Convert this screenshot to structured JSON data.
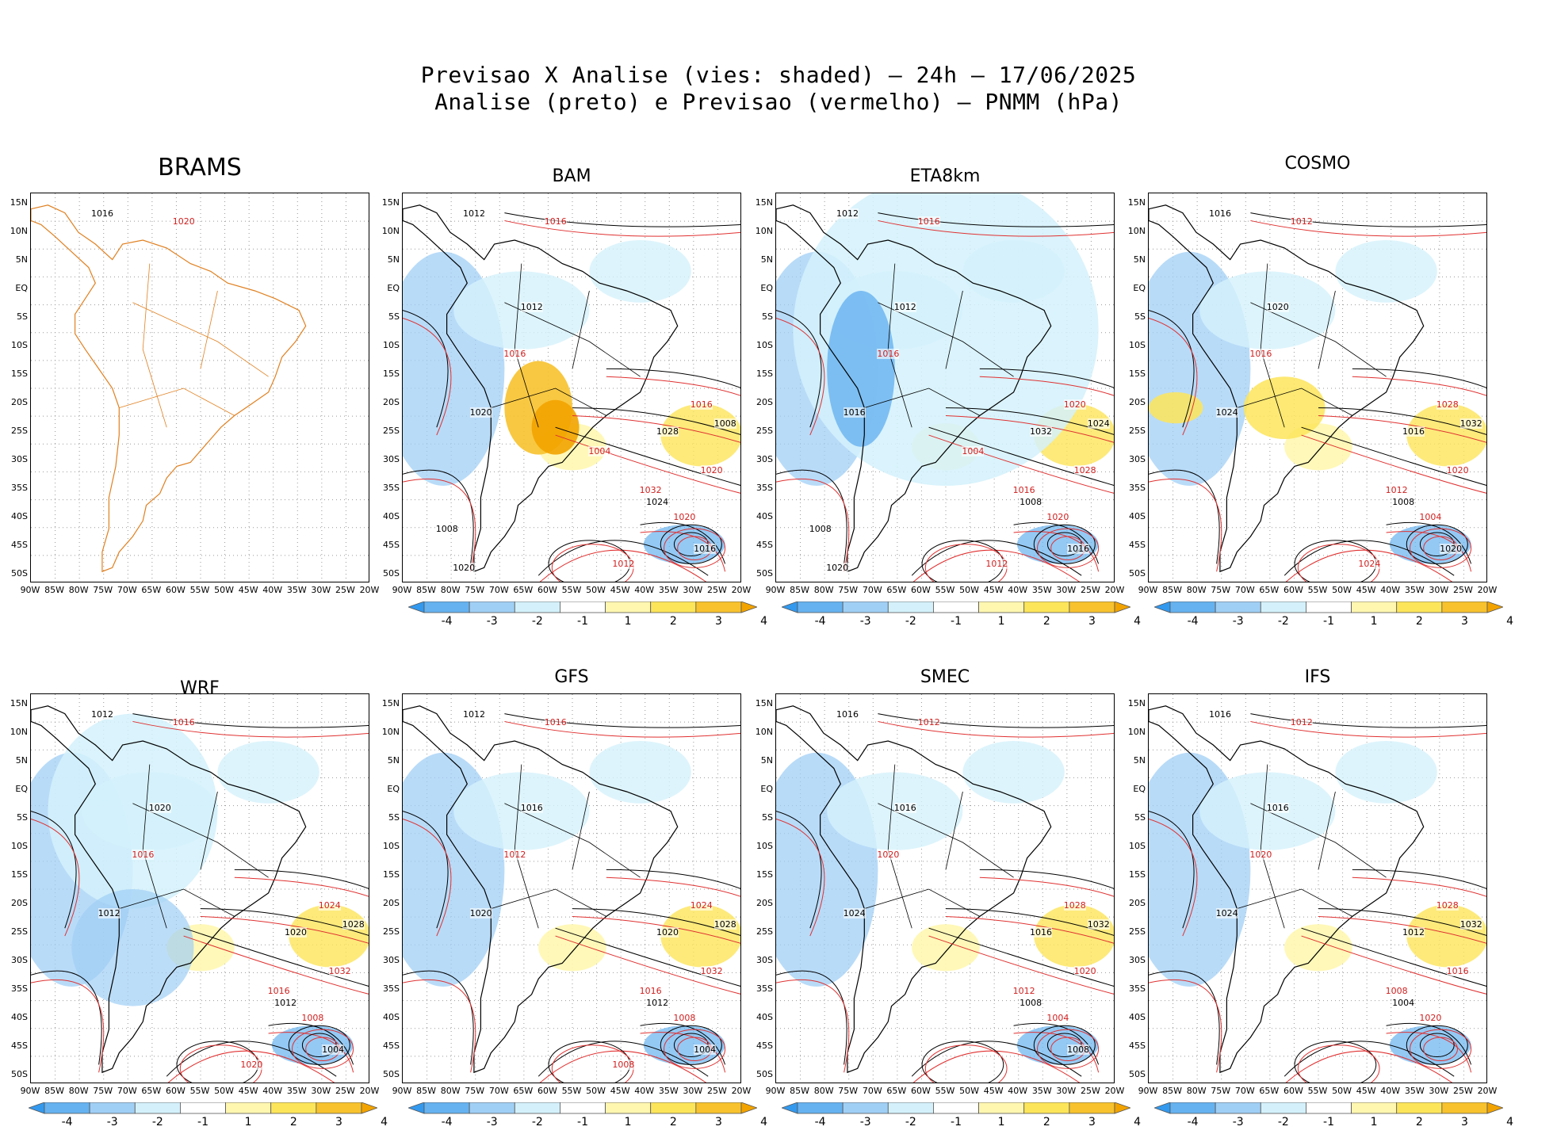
{
  "header": {
    "line1": "Previsao X Analise (vies: shaded) — 24h — 17/06/2025",
    "line2": "Analise (preto) e Previsao (vermelho) — PNMM (hPa)"
  },
  "axes": {
    "lat_labels": [
      "15N",
      "10N",
      "5N",
      "EQ",
      "5S",
      "10S",
      "15S",
      "20S",
      "25S",
      "30S",
      "35S",
      "40S",
      "45S",
      "50S"
    ],
    "lon_labels": [
      "90W",
      "85W",
      "80W",
      "75W",
      "70W",
      "65W",
      "60W",
      "55W",
      "50W",
      "45W",
      "40W",
      "35W",
      "30W",
      "25W",
      "20W"
    ]
  },
  "colorbar": {
    "labels": [
      "-4",
      "-3",
      "-2",
      "-1",
      "1",
      "2",
      "3",
      "4"
    ],
    "colors": [
      "#3399ee",
      "#66b2f0",
      "#a0cff5",
      "#d4f1fb",
      "#ffffff",
      "#fff7b0",
      "#fde55a",
      "#f7c22d",
      "#f2a300"
    ]
  },
  "panels": [
    {
      "name": "BRAMS",
      "has_colorbar": false,
      "isobars": [
        "1016",
        "1020"
      ]
    },
    {
      "name": "BAM",
      "has_colorbar": true,
      "isobars": [
        "1012",
        "1016",
        "1012",
        "1016",
        "1020",
        "1016",
        "1008",
        "1020",
        "1028",
        "1032",
        "1024",
        "1020",
        "1016",
        "1012",
        "1008",
        "1004",
        "1020"
      ]
    },
    {
      "name": "ETA8km",
      "has_colorbar": true,
      "isobars": [
        "1012",
        "1016",
        "1012",
        "1016",
        "1016",
        "1020",
        "1024",
        "1028",
        "1032",
        "1016",
        "1008",
        "1020",
        "1016",
        "1012",
        "1008",
        "1004",
        "1020"
      ]
    },
    {
      "name": "COSMO",
      "has_colorbar": true,
      "isobars": [
        "1016",
        "1012",
        "1020",
        "1016",
        "1024",
        "1028",
        "1032",
        "1020",
        "1016",
        "1012",
        "1008",
        "1004",
        "1020",
        "1024"
      ]
    },
    {
      "name": "WRF",
      "has_colorbar": true,
      "isobars": [
        "1012",
        "1016",
        "1020",
        "1016",
        "1012",
        "1024",
        "1028",
        "1032",
        "1020",
        "1016",
        "1012",
        "1008",
        "1004",
        "1020"
      ]
    },
    {
      "name": "GFS",
      "has_colorbar": true,
      "isobars": [
        "1012",
        "1016",
        "1016",
        "1012",
        "1020",
        "1024",
        "1028",
        "1032",
        "1020",
        "1016",
        "1012",
        "1008",
        "1004",
        "1008"
      ]
    },
    {
      "name": "SMEC",
      "has_colorbar": true,
      "isobars": [
        "1016",
        "1012",
        "1016",
        "1020",
        "1024",
        "1028",
        "1032",
        "1020",
        "1016",
        "1012",
        "1008",
        "1004",
        "1008"
      ]
    },
    {
      "name": "IFS",
      "has_colorbar": true,
      "isobars": [
        "1016",
        "1012",
        "1016",
        "1020",
        "1024",
        "1028",
        "1032",
        "1016",
        "1012",
        "1008",
        "1004",
        "1020"
      ]
    }
  ]
}
